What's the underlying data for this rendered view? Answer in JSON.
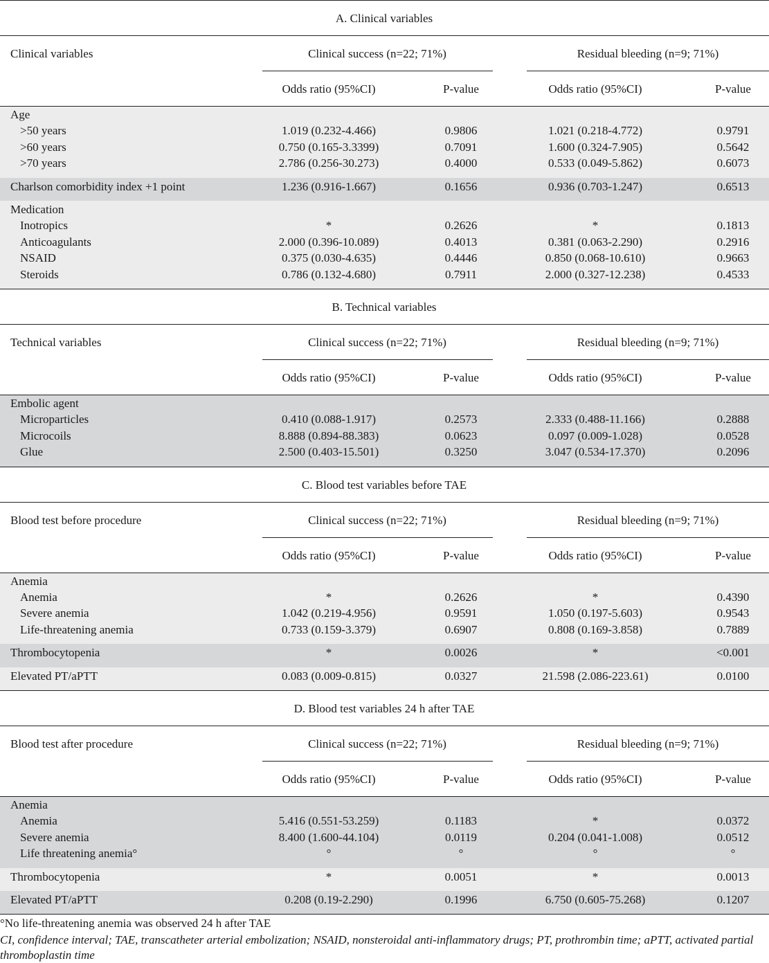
{
  "colors": {
    "band_light": "#ececec",
    "band_dark": "#d6d7d9",
    "rule": "#222222"
  },
  "sections": [
    {
      "title": "A. Clinical variables",
      "row_header": "Clinical variables",
      "groups": [
        "Clinical success (n=22; 71%)",
        "Residual bleeding (n=9; 71%)"
      ],
      "subheaders": [
        "Odds ratio (95%CI)",
        "P-value",
        "Odds ratio (95%CI)",
        "P-value"
      ],
      "blocks": [
        {
          "shade": "light",
          "rows": [
            {
              "label": "Age"
            },
            {
              "label": ">50 years",
              "indent": true,
              "or1": "1.019 (0.232-4.466)",
              "p1": "0.9806",
              "or2": "1.021 (0.218-4.772)",
              "p2": "0.9791"
            },
            {
              "label": ">60 years",
              "indent": true,
              "or1": "0.750 (0.165-3.3399)",
              "p1": "0.7091",
              "or2": "1.600 (0.324-7.905)",
              "p2": "0.5642"
            },
            {
              "label": ">70 years",
              "indent": true,
              "or1": "2.786 (0.256-30.273)",
              "p1": "0.4000",
              "or2": "0.533 (0.049-5.862)",
              "p2": "0.6073"
            }
          ]
        },
        {
          "shade": "dark",
          "rows": [
            {
              "label": "Charlson comorbidity index +1 point",
              "or1": "1.236 (0.916-1.667)",
              "p1": "0.1656",
              "or2": "0.936 (0.703-1.247)",
              "p2": "0.6513"
            }
          ]
        },
        {
          "shade": "light",
          "rows": [
            {
              "label": "Medication"
            },
            {
              "label": "Inotropics",
              "indent": true,
              "or1": "*",
              "p1": "0.2626",
              "or2": "*",
              "p2": "0.1813"
            },
            {
              "label": "Anticoagulants",
              "indent": true,
              "or1": "2.000 (0.396-10.089)",
              "p1": "0.4013",
              "or2": "0.381 (0.063-2.290)",
              "p2": "0.2916"
            },
            {
              "label": "NSAID",
              "indent": true,
              "or1": "0.375 (0.030-4.635)",
              "p1": "0.4446",
              "or2": "0.850 (0.068-10.610)",
              "p2": "0.9663"
            },
            {
              "label": "Steroids",
              "indent": true,
              "or1": "0.786 (0.132-4.680)",
              "p1": "0.7911",
              "or2": "2.000 (0.327-12.238)",
              "p2": "0.4533"
            }
          ]
        }
      ]
    },
    {
      "title": "B. Technical variables",
      "row_header": "Technical variables",
      "groups": [
        "Clinical success (n=22; 71%)",
        "Residual bleeding (n=9; 71%)"
      ],
      "subheaders": [
        "Odds ratio (95%CI)",
        "P-value",
        "Odds ratio (95%CI)",
        "P-value"
      ],
      "blocks": [
        {
          "shade": "dark",
          "rows": [
            {
              "label": "Embolic agent"
            },
            {
              "label": "Microparticles",
              "indent": true,
              "or1": "0.410 (0.088-1.917)",
              "p1": "0.2573",
              "or2": "2.333 (0.488-11.166)",
              "p2": "0.2888"
            },
            {
              "label": "Microcoils",
              "indent": true,
              "or1": "8.888 (0.894-88.383)",
              "p1": "0.0623",
              "or2": "0.097 (0.009-1.028)",
              "p2": "0.0528"
            },
            {
              "label": "Glue",
              "indent": true,
              "or1": "2.500 (0.403-15.501)",
              "p1": "0.3250",
              "or2": "3.047 (0.534-17.370)",
              "p2": "0.2096"
            }
          ]
        }
      ]
    },
    {
      "title": "C. Blood test variables before TAE",
      "row_header": "Blood test before procedure",
      "groups": [
        "Clinical success (n=22; 71%)",
        "Residual bleeding (n=9; 71%)"
      ],
      "subheaders": [
        "Odds ratio (95%CI)",
        "P-value",
        "Odds ratio (95%CI)",
        "P-value"
      ],
      "blocks": [
        {
          "shade": "light",
          "rows": [
            {
              "label": "Anemia"
            },
            {
              "label": "Anemia",
              "indent": true,
              "or1": "*",
              "p1": "0.2626",
              "or2": "*",
              "p2": "0.4390"
            },
            {
              "label": "Severe anemia",
              "indent": true,
              "or1": "1.042 (0.219-4.956)",
              "p1": "0.9591",
              "or2": "1.050 (0.197-5.603)",
              "p2": "0.9543"
            },
            {
              "label": "Life-threatening anemia",
              "indent": true,
              "or1": "0.733 (0.159-3.379)",
              "p1": "0.6907",
              "or2": "0.808 (0.169-3.858)",
              "p2": "0.7889"
            }
          ]
        },
        {
          "shade": "dark",
          "rows": [
            {
              "label": "Thrombocytopenia",
              "or1": "*",
              "p1": "0.0026",
              "or2": "*",
              "p2": "<0.001"
            }
          ]
        },
        {
          "shade": "light",
          "rows": [
            {
              "label": "Elevated PT/aPTT",
              "or1": "0.083 (0.009-0.815)",
              "p1": "0.0327",
              "or2": "21.598 (2.086-223.61)",
              "p2": "0.0100"
            }
          ]
        }
      ]
    },
    {
      "title": "D. Blood test variables 24 h after TAE",
      "row_header": "Blood test after procedure",
      "groups": [
        "Clinical success (n=22; 71%)",
        "Residual bleeding (n=9; 71%)"
      ],
      "subheaders": [
        "Odds ratio (95%CI)",
        "P-value",
        "Odds ratio (95%CI)",
        "P-value"
      ],
      "blocks": [
        {
          "shade": "dark",
          "rows": [
            {
              "label": "Anemia"
            },
            {
              "label": "Anemia",
              "indent": true,
              "or1": "5.416 (0.551-53.259)",
              "p1": "0.1183",
              "or2": "*",
              "p2": "0.0372"
            },
            {
              "label": "Severe anemia",
              "indent": true,
              "or1": "8.400 (1.600-44.104)",
              "p1": "0.0119",
              "or2": "0.204 (0.041-1.008)",
              "p2": "0.0512"
            },
            {
              "label": "Life threatening anemia°",
              "indent": true,
              "or1": "°",
              "p1": "°",
              "or2": "°",
              "p2": "°"
            }
          ]
        },
        {
          "shade": "light",
          "rows": [
            {
              "label": "Thrombocytopenia",
              "or1": "*",
              "p1": "0.0051",
              "or2": "*",
              "p2": "0.0013"
            }
          ]
        },
        {
          "shade": "dark",
          "rows": [
            {
              "label": "Elevated PT/aPTT",
              "or1": "0.208 (0.19-2.290)",
              "p1": "0.1996",
              "or2": "6.750 (0.605-75.268)",
              "p2": "0.1207"
            }
          ]
        }
      ]
    }
  ],
  "footnotes": {
    "note": "°No life-threatening anemia was observed 24 h after TAE",
    "abbreviations": "CI, confidence interval; TAE, transcatheter arterial embolization; NSAID, nonsteroidal anti-inflammatory drugs; PT, prothrombin time; aPTT, activated partial thromboplastin time"
  }
}
